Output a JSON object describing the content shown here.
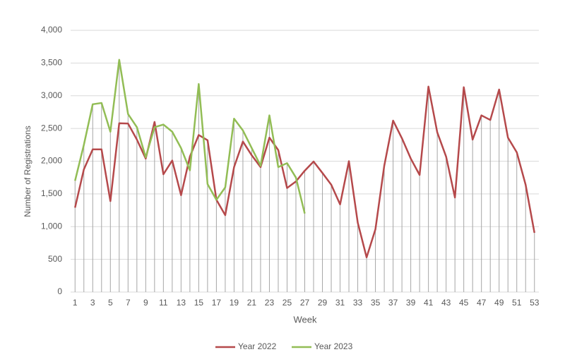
{
  "chart_data": {
    "type": "line",
    "x_label": "Week",
    "y_label": "Number of Registrations",
    "x": [
      1,
      2,
      3,
      4,
      5,
      6,
      7,
      8,
      9,
      10,
      11,
      12,
      13,
      14,
      15,
      16,
      17,
      18,
      19,
      20,
      21,
      22,
      23,
      24,
      25,
      26,
      27,
      28,
      29,
      30,
      31,
      32,
      33,
      34,
      35,
      36,
      37,
      38,
      39,
      40,
      41,
      42,
      43,
      44,
      45,
      46,
      47,
      48,
      49,
      50,
      51,
      52,
      53
    ],
    "series": [
      {
        "name": "Year 2022",
        "color": "#b5494b",
        "values": [
          1290,
          1875,
          2180,
          2180,
          1390,
          2580,
          2575,
          2330,
          2040,
          2600,
          1800,
          2010,
          1480,
          2070,
          2400,
          2320,
          1410,
          1175,
          1910,
          2300,
          2090,
          1910,
          2360,
          2170,
          1590,
          1690,
          1855,
          1995,
          1820,
          1640,
          1340,
          2000,
          1060,
          530,
          960,
          1930,
          2620,
          2350,
          2040,
          1790,
          3140,
          2440,
          2070,
          1445,
          3130,
          2330,
          2700,
          2630,
          3095,
          2360,
          2135,
          1640,
          905
        ]
      },
      {
        "name": "Year 2023",
        "color": "#92bd55",
        "values": [
          1700,
          2250,
          2870,
          2890,
          2450,
          3550,
          2720,
          2520,
          2060,
          2520,
          2560,
          2450,
          2200,
          1860,
          3180,
          1650,
          1410,
          1600,
          2650,
          2470,
          2200,
          1930,
          2700,
          1910,
          1970,
          1750,
          1200,
          null,
          null,
          null,
          null,
          null,
          null,
          null,
          null,
          null,
          null,
          null,
          null,
          null,
          null,
          null,
          null,
          null,
          null,
          null,
          null,
          null,
          null,
          null,
          null,
          null,
          null
        ]
      }
    ],
    "xlim": [
      0.5,
      53.5
    ],
    "xticks": [
      1,
      3,
      5,
      7,
      9,
      11,
      13,
      15,
      17,
      19,
      21,
      23,
      25,
      27,
      29,
      31,
      33,
      35,
      37,
      39,
      41,
      43,
      45,
      47,
      49,
      51,
      53
    ],
    "ylim": [
      0,
      4000
    ],
    "yticks": [
      0,
      {
        "value": 500,
        "label": "500"
      },
      {
        "value": 1000,
        "label": "1,000"
      },
      {
        "value": 1500,
        "label": "1,500"
      },
      {
        "value": 2000,
        "label": "2,000"
      },
      {
        "value": 2500,
        "label": "2,500"
      },
      {
        "value": 3000,
        "label": "3,000"
      },
      {
        "value": 3500,
        "label": "3,500"
      },
      {
        "value": 4000,
        "label": "4,000"
      }
    ],
    "grid": true,
    "drop_lines": true,
    "legend": "bottom"
  }
}
